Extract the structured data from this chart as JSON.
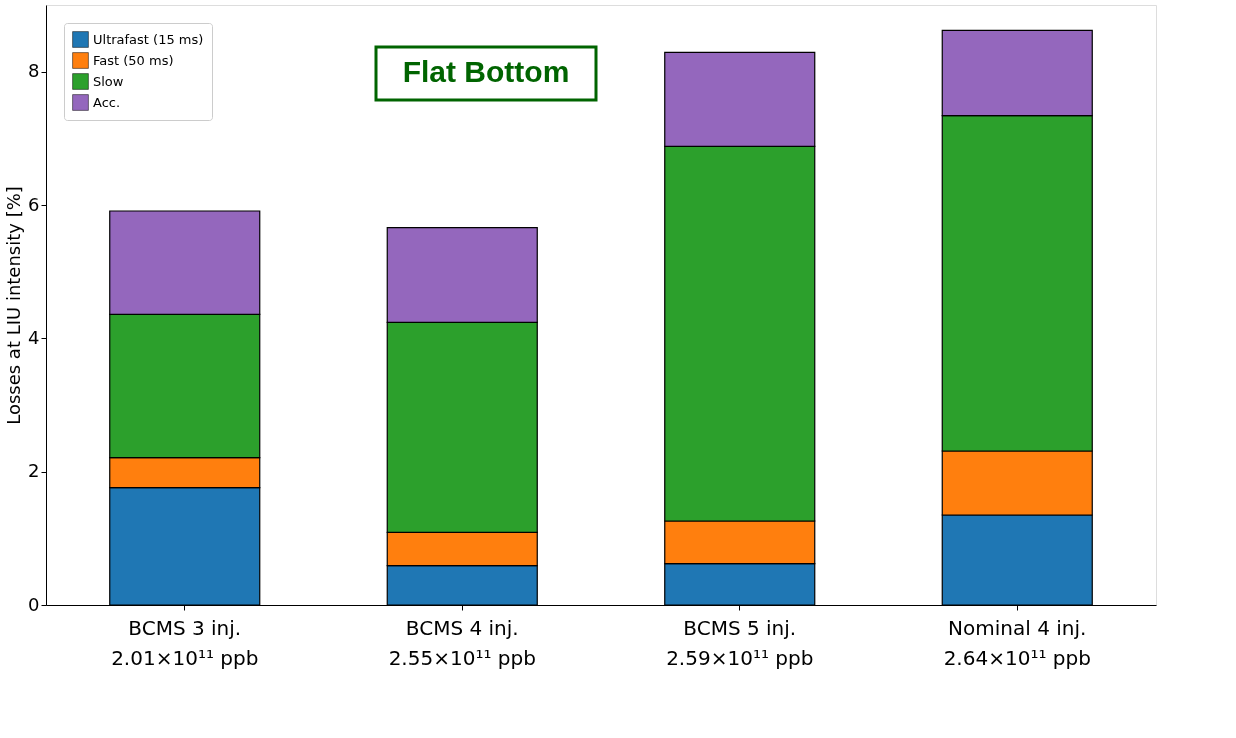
{
  "chart_data": {
    "type": "bar",
    "stacked": true,
    "ylabel": "Losses at LIU intensity [%]",
    "categories": [
      "BCMS 3 inj.\n2.01×10¹¹ ppb",
      "BCMS 4 inj.\n2.55×10¹¹ ppb",
      "BCMS 5 inj.\n2.59×10¹¹ ppb",
      "Nominal 4 inj.\n2.64×10¹¹ ppb"
    ],
    "series": [
      {
        "name": "Ultrafast (15 ms)",
        "color": "#1f77b4",
        "values": [
          1.76,
          0.59,
          0.62,
          1.35
        ]
      },
      {
        "name": "Fast (50 ms)",
        "color": "#ff7f0e",
        "values": [
          0.45,
          0.5,
          0.64,
          0.96
        ]
      },
      {
        "name": "Slow",
        "color": "#2ca02c",
        "values": [
          2.15,
          3.15,
          5.62,
          5.03
        ]
      },
      {
        "name": "Acc.",
        "color": "#9467bd",
        "values": [
          1.55,
          1.42,
          1.41,
          1.28
        ]
      }
    ],
    "ylim": [
      0,
      9.0
    ],
    "yticks": [
      0,
      2,
      4,
      6,
      8
    ],
    "grid": false,
    "legend": "top left",
    "annotations": [
      "Flat Bottom"
    ]
  }
}
